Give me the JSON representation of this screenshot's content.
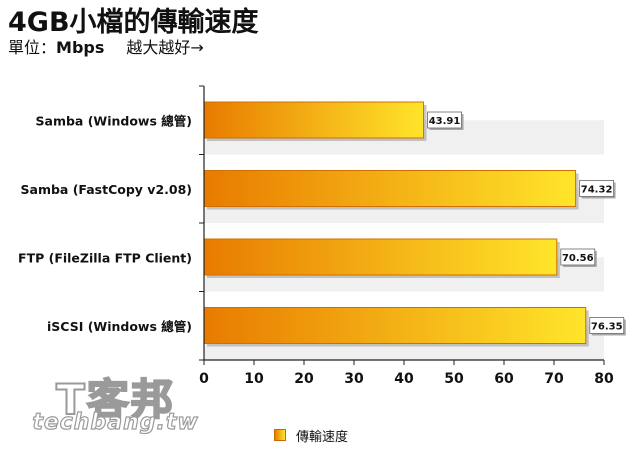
{
  "chart_data": {
    "type": "bar",
    "orientation": "horizontal",
    "title": "4GB小檔的傳輸速度",
    "subtitle_prefix": "單位：",
    "unit": "Mbps",
    "subtitle_note": "越大越好→",
    "categories": [
      "Samba (Windows 總管)",
      "Samba (FastCopy v2.08)",
      "FTP (FileZilla FTP Client)",
      "iSCSI (Windows 總管)"
    ],
    "series": [
      {
        "name": "傳輸速度",
        "values": [
          43.91,
          74.32,
          70.56,
          76.35
        ]
      }
    ],
    "value_labels": [
      "43.91",
      "74.32",
      "70.56",
      "76.35"
    ],
    "xlim": [
      0,
      80
    ],
    "x_ticks": [
      "0",
      "10",
      "20",
      "30",
      "40",
      "50",
      "60",
      "70",
      "80"
    ],
    "grid": "alternating row bands",
    "legend_position": "bottom",
    "colors": {
      "bar_start": "#e87b00",
      "bar_end": "#ffe52a",
      "band": "#f0f0f0"
    }
  },
  "watermark": {
    "cn": "T客邦",
    "en": "techbang.tw"
  }
}
